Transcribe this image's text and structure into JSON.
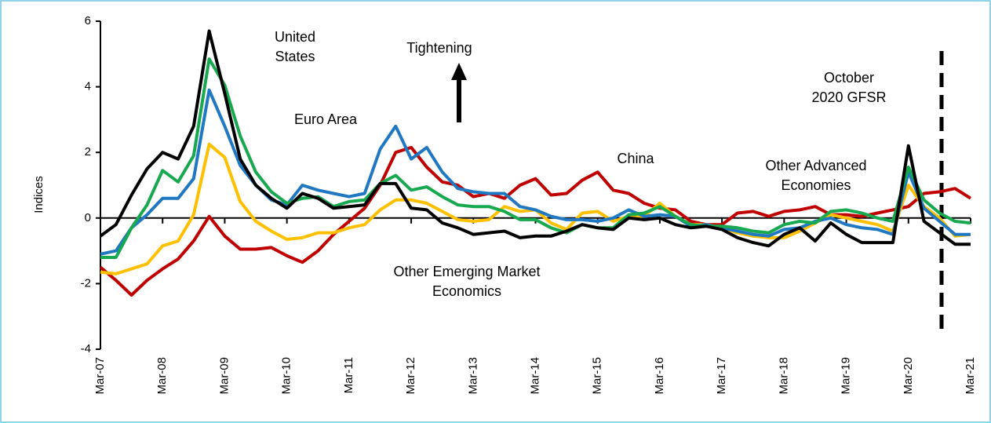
{
  "chart_data": {
    "type": "line",
    "y_label": "Indices",
    "categories": [
      "Mar-07",
      null,
      null,
      null,
      "Mar-08",
      null,
      null,
      null,
      "Mar-09",
      null,
      null,
      null,
      "Mar-10",
      null,
      null,
      null,
      "Mar-11",
      null,
      null,
      null,
      "Mar-12",
      null,
      null,
      null,
      "Mar-13",
      null,
      null,
      null,
      "Mar-14",
      null,
      null,
      null,
      "Mar-15",
      null,
      null,
      null,
      "Mar-16",
      null,
      null,
      null,
      "Mar-17",
      null,
      null,
      null,
      "Mar-18",
      null,
      null,
      null,
      "Mar-19",
      null,
      null,
      null,
      "Mar-20",
      null,
      null,
      null,
      "Mar-21"
    ],
    "series": [
      {
        "color": "#c00000",
        "values": [
          -1.5,
          -1.9,
          -2.35,
          -1.9,
          -1.55,
          -1.25,
          -0.7,
          0.05,
          -0.55,
          -0.95,
          -0.95,
          -0.9,
          -1.15,
          -1.35,
          -1.0,
          -0.5,
          -0.1,
          0.3,
          1.0,
          2.0,
          2.15,
          1.55,
          1.1,
          1.0,
          0.65,
          0.75,
          0.6,
          1.0,
          1.2,
          0.7,
          0.75,
          1.15,
          1.4,
          0.85,
          0.75,
          0.45,
          0.3,
          0.25,
          -0.1,
          -0.2,
          -0.2,
          0.15,
          0.2,
          0.05,
          0.2,
          0.25,
          0.35,
          0.1,
          0.1,
          0.05,
          0.15,
          0.25,
          0.35,
          0.75,
          0.8,
          0.9,
          0.6
        ]
      },
      {
        "color": "#ffc000",
        "values": [
          -1.65,
          -1.7,
          -1.55,
          -1.4,
          -0.85,
          -0.7,
          0.1,
          2.25,
          1.85,
          0.5,
          -0.1,
          -0.4,
          -0.65,
          -0.6,
          -0.45,
          -0.45,
          -0.3,
          -0.2,
          0.25,
          0.55,
          0.55,
          0.45,
          0.2,
          -0.05,
          -0.1,
          -0.05,
          0.35,
          0.2,
          0.25,
          -0.15,
          -0.35,
          0.15,
          0.2,
          -0.1,
          0.05,
          0.05,
          0.45,
          0.05,
          -0.2,
          -0.2,
          -0.3,
          -0.45,
          -0.55,
          -0.6,
          -0.6,
          -0.4,
          -0.15,
          0.1,
          0.0,
          -0.1,
          -0.2,
          -0.4,
          1.0,
          0.35,
          0.0,
          -0.55,
          -0.5
        ]
      },
      {
        "color": "#1f78c1",
        "values": [
          -1.1,
          -1.0,
          -0.3,
          0.1,
          0.6,
          0.6,
          1.2,
          3.9,
          2.8,
          1.6,
          1.0,
          0.55,
          0.4,
          1.0,
          0.85,
          0.75,
          0.65,
          0.75,
          2.1,
          2.8,
          1.8,
          2.15,
          1.4,
          0.9,
          0.8,
          0.75,
          0.75,
          0.35,
          0.25,
          0.05,
          -0.05,
          -0.05,
          -0.1,
          0.0,
          0.25,
          0.05,
          0.1,
          0.05,
          -0.25,
          -0.2,
          -0.3,
          -0.4,
          -0.5,
          -0.55,
          -0.35,
          -0.3,
          -0.1,
          0.0,
          -0.2,
          -0.3,
          -0.35,
          -0.5,
          1.4,
          0.3,
          -0.1,
          -0.5,
          -0.5
        ]
      },
      {
        "color": "#18a84f",
        "values": [
          -1.2,
          -1.2,
          -0.3,
          0.4,
          1.45,
          1.1,
          1.9,
          4.85,
          4.05,
          2.5,
          1.4,
          0.8,
          0.45,
          0.6,
          0.65,
          0.35,
          0.5,
          0.55,
          1.05,
          1.3,
          0.85,
          0.95,
          0.65,
          0.4,
          0.35,
          0.35,
          0.2,
          -0.05,
          -0.05,
          -0.3,
          -0.45,
          -0.2,
          -0.3,
          -0.3,
          0.1,
          0.15,
          0.35,
          0.05,
          -0.2,
          -0.25,
          -0.25,
          -0.3,
          -0.4,
          -0.45,
          -0.2,
          -0.1,
          -0.15,
          0.2,
          0.25,
          0.15,
          0.0,
          -0.1,
          1.55,
          0.55,
          0.15,
          -0.1,
          -0.15
        ]
      },
      {
        "color": "#000000",
        "values": [
          -0.55,
          -0.2,
          0.7,
          1.5,
          2.0,
          1.8,
          2.8,
          5.7,
          3.8,
          1.8,
          1.0,
          0.6,
          0.3,
          0.75,
          0.6,
          0.3,
          0.35,
          0.4,
          1.05,
          1.05,
          0.3,
          0.25,
          -0.15,
          -0.3,
          -0.5,
          -0.45,
          -0.4,
          -0.6,
          -0.55,
          -0.55,
          -0.4,
          -0.2,
          -0.3,
          -0.35,
          0.0,
          -0.05,
          0.0,
          -0.2,
          -0.3,
          -0.25,
          -0.35,
          -0.6,
          -0.75,
          -0.85,
          -0.5,
          -0.3,
          -0.7,
          -0.15,
          -0.5,
          -0.75,
          -0.75,
          -0.75,
          2.2,
          -0.1,
          -0.45,
          -0.8,
          -0.8
        ]
      }
    ],
    "annotations": [
      {
        "lines": [
          "United",
          "States"
        ]
      },
      {
        "lines": [
          "Tightening"
        ]
      },
      {
        "lines": [
          "Euro Area"
        ]
      },
      {
        "lines": [
          "China"
        ]
      },
      {
        "lines": [
          "Other Advanced",
          "Economies"
        ]
      },
      {
        "lines": [
          "Other Emerging Market",
          "Economics"
        ]
      },
      {
        "lines": [
          "October",
          "2020 GFSR"
        ]
      }
    ],
    "ylim": [
      -4,
      6
    ],
    "yticks": [
      -4,
      -2,
      0,
      2,
      4,
      6
    ]
  }
}
